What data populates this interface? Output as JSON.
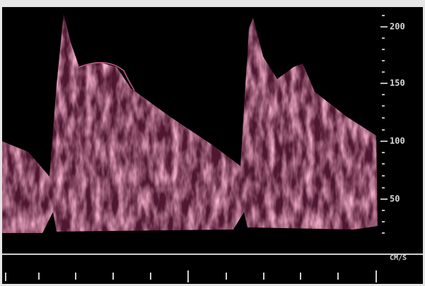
{
  "scale": {
    "ticks": [
      "200",
      "150",
      "100",
      "50"
    ],
    "unit": "CM/S"
  }
}
